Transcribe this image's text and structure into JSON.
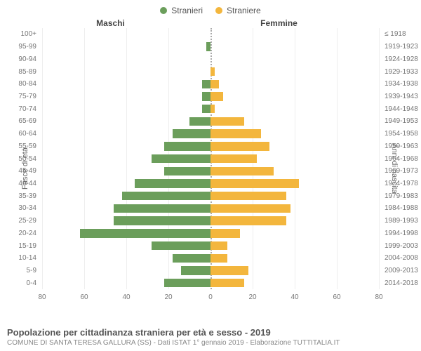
{
  "chart": {
    "type": "population-pyramid",
    "legend": [
      {
        "label": "Stranieri",
        "color": "#6b9e5b"
      },
      {
        "label": "Straniere",
        "color": "#f3b63d"
      }
    ],
    "headers": {
      "left": "Maschi",
      "right": "Femmine"
    },
    "yaxis_left_label": "Fasce di età",
    "yaxis_right_label": "Anni di nascita",
    "age_labels": [
      "100+",
      "95-99",
      "90-94",
      "85-89",
      "80-84",
      "75-79",
      "70-74",
      "65-69",
      "60-64",
      "55-59",
      "50-54",
      "45-49",
      "40-44",
      "35-39",
      "30-34",
      "25-29",
      "20-24",
      "15-19",
      "10-14",
      "5-9",
      "0-4"
    ],
    "birth_labels": [
      "≤ 1918",
      "1919-1923",
      "1924-1928",
      "1929-1933",
      "1934-1938",
      "1939-1943",
      "1944-1948",
      "1949-1953",
      "1954-1958",
      "1959-1963",
      "1964-1968",
      "1969-1973",
      "1974-1978",
      "1979-1983",
      "1984-1988",
      "1989-1993",
      "1994-1998",
      "1999-2003",
      "2004-2008",
      "2009-2013",
      "2014-2018"
    ],
    "male": [
      0,
      2,
      0,
      0,
      4,
      4,
      4,
      10,
      18,
      22,
      28,
      22,
      36,
      42,
      46,
      46,
      62,
      28,
      18,
      14,
      22
    ],
    "female": [
      0,
      0,
      0,
      2,
      4,
      6,
      2,
      16,
      24,
      28,
      22,
      30,
      42,
      36,
      38,
      36,
      14,
      8,
      8,
      18,
      16
    ],
    "colors": {
      "male": "#6b9e5b",
      "female": "#f3b63d",
      "grid": "#eeeeee",
      "center": "#aaaaaa",
      "bg": "#ffffff"
    },
    "xaxis": {
      "max": 80,
      "step": 20,
      "ticks_left": [
        80,
        60,
        40,
        20,
        0
      ],
      "ticks_right": [
        0,
        20,
        40,
        60,
        80
      ]
    },
    "bar_height_ratio": 0.7,
    "label_fontsize": 10,
    "tick_fontsize": 10
  },
  "title": "Popolazione per cittadinanza straniera per età e sesso - 2019",
  "subtitle": "COMUNE DI SANTA TERESA GALLURA (SS) - Dati ISTAT 1° gennaio 2019 - Elaborazione TUTTITALIA.IT"
}
